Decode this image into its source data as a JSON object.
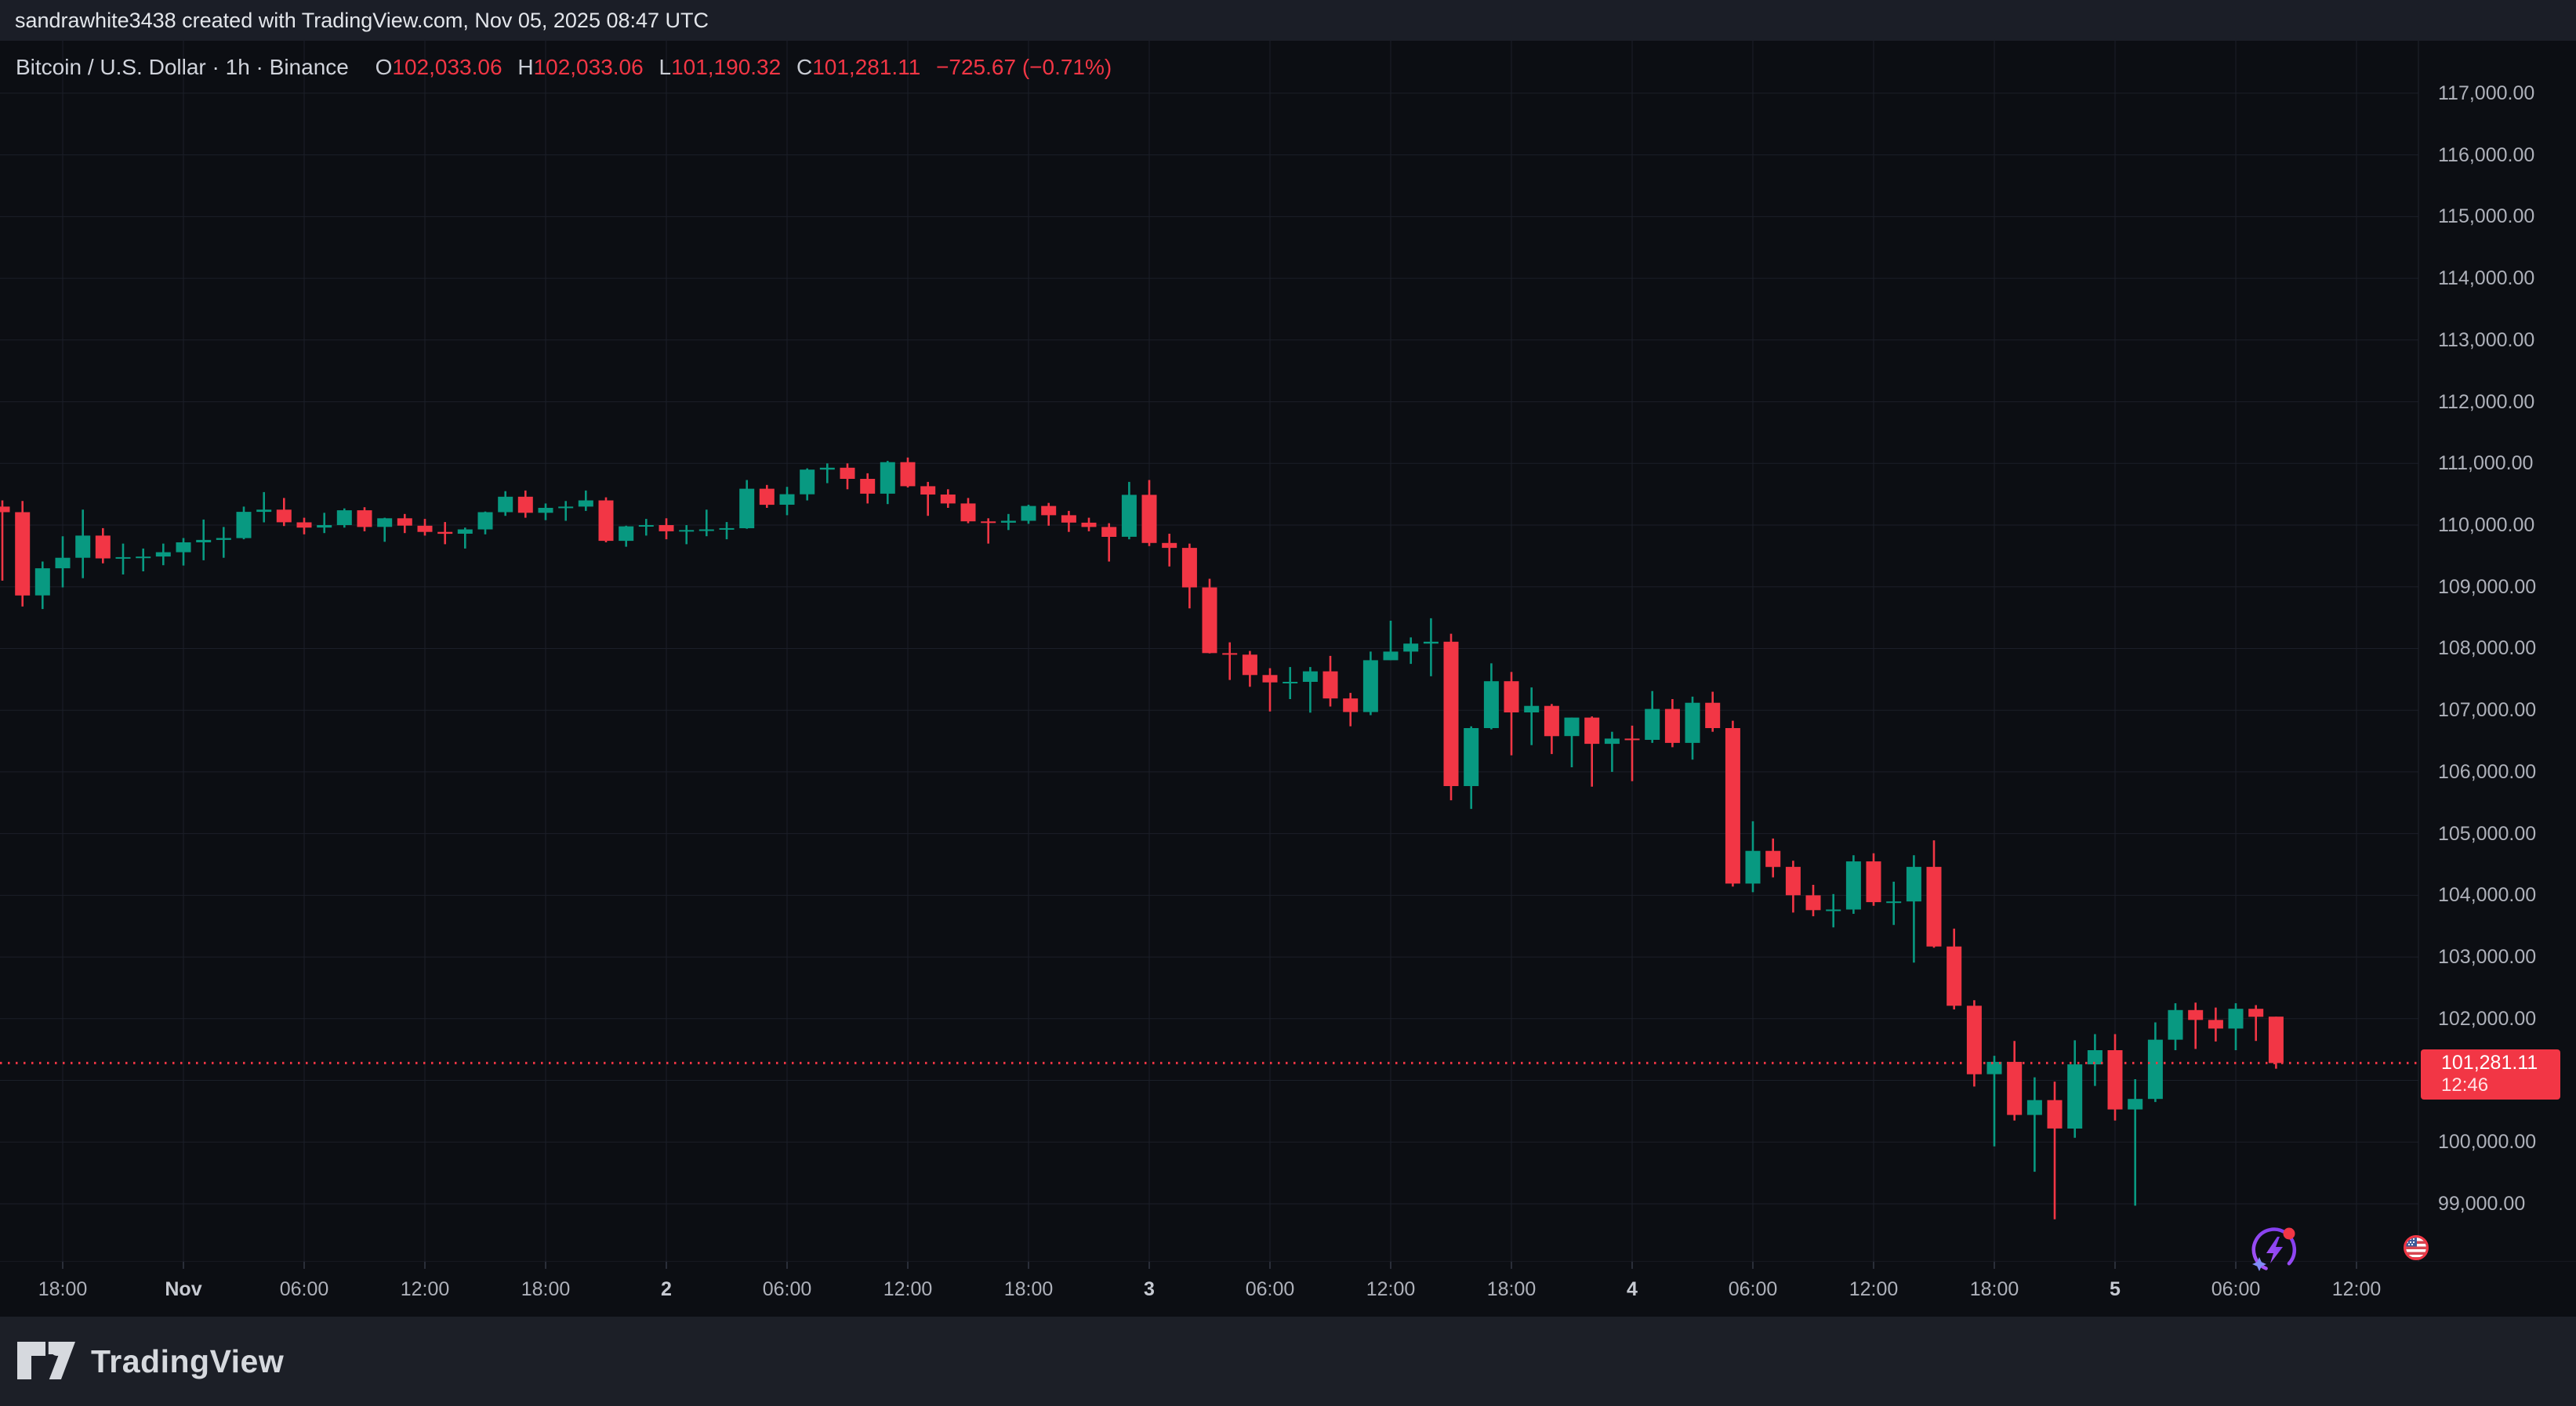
{
  "top_bar": {
    "attribution": "sandrawhite3438 created with TradingView.com, Nov 05, 2025 08:47 UTC"
  },
  "symbol_row": {
    "title": "Bitcoin / U.S. Dollar · 1h · Binance",
    "ohlc": {
      "o_label": "O",
      "o": "102,033.06",
      "h_label": "H",
      "h": "102,033.06",
      "l_label": "L",
      "l": "101,190.32",
      "c_label": "C",
      "c": "101,281.11",
      "change": "−725.67 (−0.71%)"
    }
  },
  "price_label": {
    "price": "101,281.11",
    "countdown": "12:46"
  },
  "price_axis": {
    "labels": [
      {
        "value": 117000,
        "text": "117,000.00"
      },
      {
        "value": 116000,
        "text": "116,000.00"
      },
      {
        "value": 115000,
        "text": "115,000.00"
      },
      {
        "value": 114000,
        "text": "114,000.00"
      },
      {
        "value": 113000,
        "text": "113,000.00"
      },
      {
        "value": 112000,
        "text": "112,000.00"
      },
      {
        "value": 111000,
        "text": "111,000.00"
      },
      {
        "value": 110000,
        "text": "110,000.00"
      },
      {
        "value": 109000,
        "text": "109,000.00"
      },
      {
        "value": 108000,
        "text": "108,000.00"
      },
      {
        "value": 107000,
        "text": "107,000.00"
      },
      {
        "value": 106000,
        "text": "106,000.00"
      },
      {
        "value": 105000,
        "text": "105,000.00"
      },
      {
        "value": 104000,
        "text": "104,000.00"
      },
      {
        "value": 103000,
        "text": "103,000.00"
      },
      {
        "value": 102000,
        "text": "102,000.00"
      },
      {
        "value": 101000,
        "text": "101,000.00"
      },
      {
        "value": 100000,
        "text": "100,000.00"
      },
      {
        "value": 99000,
        "text": "99,000.00"
      }
    ]
  },
  "time_axis": {
    "labels": [
      {
        "text": "18:00",
        "hour_index": 3,
        "day": false
      },
      {
        "text": "Nov",
        "hour_index": 9,
        "day": true
      },
      {
        "text": "06:00",
        "hour_index": 15,
        "day": false
      },
      {
        "text": "12:00",
        "hour_index": 21,
        "day": false
      },
      {
        "text": "18:00",
        "hour_index": 27,
        "day": false
      },
      {
        "text": "2",
        "hour_index": 33,
        "day": true
      },
      {
        "text": "06:00",
        "hour_index": 39,
        "day": false
      },
      {
        "text": "12:00",
        "hour_index": 45,
        "day": false
      },
      {
        "text": "18:00",
        "hour_index": 51,
        "day": false
      },
      {
        "text": "3",
        "hour_index": 57,
        "day": true
      },
      {
        "text": "06:00",
        "hour_index": 63,
        "day": false
      },
      {
        "text": "12:00",
        "hour_index": 69,
        "day": false
      },
      {
        "text": "18:00",
        "hour_index": 75,
        "day": false
      },
      {
        "text": "4",
        "hour_index": 81,
        "day": true
      },
      {
        "text": "06:00",
        "hour_index": 87,
        "day": false
      },
      {
        "text": "12:00",
        "hour_index": 93,
        "day": false
      },
      {
        "text": "18:00",
        "hour_index": 99,
        "day": false
      },
      {
        "text": "5",
        "hour_index": 105,
        "day": true
      },
      {
        "text": "06:00",
        "hour_index": 111,
        "day": false
      },
      {
        "text": "12:00",
        "hour_index": 117,
        "day": false
      }
    ]
  },
  "bottom_bar": {
    "brand": "TradingView"
  },
  "colors": {
    "up": "#089981",
    "down": "#F23645",
    "accent_red": "#F23645",
    "background": "#0C0E13",
    "panel": "#1B1E27",
    "axis_text": "#AEB1BA"
  },
  "icons": {
    "spark_event": "crypto-spark-lightning-icon",
    "flag_event": "us-flag-economic-event-icon"
  },
  "chart_data": {
    "type": "candlestick",
    "title": "Bitcoin / U.S. Dollar",
    "interval": "1h",
    "exchange": "Binance",
    "timezone": "UTC",
    "current_bar": {
      "open": 102033.06,
      "high": 102033.06,
      "low": 101190.32,
      "close": 101281.11,
      "change": -725.67,
      "change_pct": -0.71,
      "countdown": "12:46"
    },
    "last_price": 101281.11,
    "price_range": {
      "min": 98060,
      "max": 117850
    },
    "grid": true,
    "candles": [
      [
        "Oct31 15:00",
        110300,
        110400,
        109100,
        110210
      ],
      [
        "Oct31 16:00",
        110210,
        110390,
        108680,
        108860
      ],
      [
        "Oct31 17:00",
        108860,
        109410,
        108640,
        109300
      ],
      [
        "Oct31 18:00",
        109300,
        109820,
        108990,
        109470
      ],
      [
        "Oct31 19:00",
        109470,
        110250,
        109140,
        109830
      ],
      [
        "Oct31 20:00",
        109830,
        109950,
        109380,
        109460
      ],
      [
        "Oct31 21:00",
        109460,
        109700,
        109200,
        109480
      ],
      [
        "Oct31 22:00",
        109480,
        109620,
        109250,
        109490
      ],
      [
        "Oct31 23:00",
        109490,
        109700,
        109350,
        109560
      ],
      [
        "Nov1 00:00",
        109560,
        109790,
        109345,
        109720
      ],
      [
        "Nov1 01:00",
        109720,
        110090,
        109430,
        109760
      ],
      [
        "Nov1 02:00",
        109760,
        109970,
        109470,
        109790
      ],
      [
        "Nov1 03:00",
        109790,
        110300,
        109770,
        110215
      ],
      [
        "Nov1 04:00",
        110215,
        110535,
        110045,
        110250
      ],
      [
        "Nov1 05:00",
        110250,
        110440,
        109985,
        110045
      ],
      [
        "Nov1 06:00",
        110045,
        110120,
        109850,
        109960
      ],
      [
        "Nov1 07:00",
        109960,
        110200,
        109870,
        110000
      ],
      [
        "Nov1 08:00",
        110000,
        110270,
        109960,
        110240
      ],
      [
        "Nov1 09:00",
        110240,
        110290,
        109900,
        109970
      ],
      [
        "Nov1 10:00",
        109970,
        110120,
        109730,
        110110
      ],
      [
        "Nov1 11:00",
        110110,
        110180,
        109870,
        109990
      ],
      [
        "Nov1 12:00",
        109990,
        110100,
        109830,
        109890
      ],
      [
        "Nov1 13:00",
        109890,
        110050,
        109690,
        109860
      ],
      [
        "Nov1 14:00",
        109860,
        109960,
        109620,
        109930
      ],
      [
        "Nov1 15:00",
        109930,
        110220,
        109850,
        110210
      ],
      [
        "Nov1 16:00",
        110210,
        110550,
        110150,
        110460
      ],
      [
        "Nov1 17:00",
        110460,
        110560,
        110120,
        110200
      ],
      [
        "Nov1 18:00",
        110200,
        110350,
        110080,
        110280
      ],
      [
        "Nov1 19:00",
        110280,
        110390,
        110070,
        110300
      ],
      [
        "Nov1 20:00",
        110300,
        110560,
        110230,
        110400
      ],
      [
        "Nov1 21:00",
        110400,
        110450,
        109720,
        109745
      ],
      [
        "Nov1 22:00",
        109745,
        109990,
        109650,
        109980
      ],
      [
        "Nov1 23:00",
        109980,
        110100,
        109830,
        110000
      ],
      [
        "Nov2 00:00",
        110000,
        110110,
        109770,
        109900
      ],
      [
        "Nov2 01:00",
        109900,
        110000,
        109690,
        109920
      ],
      [
        "Nov2 02:00",
        109920,
        110250,
        109820,
        109930
      ],
      [
        "Nov2 03:00",
        109930,
        110050,
        109770,
        109950
      ],
      [
        "Nov2 04:00",
        109950,
        110730,
        109940,
        110590
      ],
      [
        "Nov2 05:00",
        110590,
        110650,
        110280,
        110330
      ],
      [
        "Nov2 06:00",
        110330,
        110620,
        110160,
        110500
      ],
      [
        "Nov2 07:00",
        110500,
        110920,
        110400,
        110900
      ],
      [
        "Nov2 08:00",
        110900,
        111000,
        110680,
        110930
      ],
      [
        "Nov2 09:00",
        110930,
        111000,
        110580,
        110750
      ],
      [
        "Nov2 10:00",
        110750,
        110840,
        110350,
        110510
      ],
      [
        "Nov2 11:00",
        110510,
        111040,
        110340,
        111020
      ],
      [
        "Nov2 12:00",
        111020,
        111095,
        110610,
        110630
      ],
      [
        "Nov2 13:00",
        110630,
        110700,
        110150,
        110495
      ],
      [
        "Nov2 14:00",
        110495,
        110580,
        110280,
        110350
      ],
      [
        "Nov2 15:00",
        110350,
        110440,
        110030,
        110060
      ],
      [
        "Nov2 16:00",
        110060,
        110110,
        109700,
        110040
      ],
      [
        "Nov2 17:00",
        110040,
        110180,
        109920,
        110070
      ],
      [
        "Nov2 18:00",
        110070,
        110330,
        110020,
        110310
      ],
      [
        "Nov2 19:00",
        110310,
        110360,
        109990,
        110160
      ],
      [
        "Nov2 20:00",
        110160,
        110230,
        109890,
        110040
      ],
      [
        "Nov2 21:00",
        110040,
        110120,
        109900,
        109970
      ],
      [
        "Nov2 22:00",
        109970,
        110030,
        109410,
        109810
      ],
      [
        "Nov2 23:00",
        109810,
        110700,
        109770,
        110490
      ],
      [
        "Nov3 00:00",
        110490,
        110730,
        109660,
        109710
      ],
      [
        "Nov3 01:00",
        109710,
        109860,
        109330,
        109630
      ],
      [
        "Nov3 02:00",
        109630,
        109700,
        108650,
        108990
      ],
      [
        "Nov3 03:00",
        108990,
        109130,
        107920,
        107925
      ],
      [
        "Nov3 04:00",
        107925,
        108100,
        107490,
        107900
      ],
      [
        "Nov3 05:00",
        107900,
        107960,
        107380,
        107570
      ],
      [
        "Nov3 06:00",
        107570,
        107680,
        106980,
        107450
      ],
      [
        "Nov3 07:00",
        107450,
        107700,
        107180,
        107460
      ],
      [
        "Nov3 08:00",
        107460,
        107700,
        106960,
        107630
      ],
      [
        "Nov3 09:00",
        107630,
        107880,
        107060,
        107190
      ],
      [
        "Nov3 10:00",
        107190,
        107280,
        106740,
        106970
      ],
      [
        "Nov3 11:00",
        106970,
        107950,
        106920,
        107810
      ],
      [
        "Nov3 12:00",
        107810,
        108450,
        107810,
        107950
      ],
      [
        "Nov3 13:00",
        107950,
        108180,
        107750,
        108080
      ],
      [
        "Nov3 14:00",
        108080,
        108490,
        107550,
        108110
      ],
      [
        "Nov3 15:00",
        108110,
        108240,
        105540,
        105770
      ],
      [
        "Nov3 16:00",
        105770,
        106740,
        105400,
        106710
      ],
      [
        "Nov3 17:00",
        106710,
        107760,
        106690,
        107470
      ],
      [
        "Nov3 18:00",
        107470,
        107620,
        106270,
        106965
      ],
      [
        "Nov3 19:00",
        106965,
        107370,
        106435,
        107070
      ],
      [
        "Nov3 20:00",
        107070,
        107100,
        106290,
        106580
      ],
      [
        "Nov3 21:00",
        106580,
        106880,
        106075,
        106880
      ],
      [
        "Nov3 22:00",
        106880,
        106900,
        105760,
        106455
      ],
      [
        "Nov3 23:00",
        106455,
        106650,
        106000,
        106540
      ],
      [
        "Nov4 00:00",
        106540,
        106750,
        105850,
        106520
      ],
      [
        "Nov4 01:00",
        106520,
        107310,
        106470,
        107020
      ],
      [
        "Nov4 02:00",
        107020,
        107180,
        106400,
        106470
      ],
      [
        "Nov4 03:00",
        106470,
        107220,
        106200,
        107120
      ],
      [
        "Nov4 04:00",
        107120,
        107300,
        106650,
        106710
      ],
      [
        "Nov4 05:00",
        106710,
        106830,
        104140,
        104190
      ],
      [
        "Nov4 06:00",
        104190,
        105200,
        104050,
        104720
      ],
      [
        "Nov4 07:00",
        104720,
        104920,
        104290,
        104460
      ],
      [
        "Nov4 08:00",
        104460,
        104560,
        103720,
        104000
      ],
      [
        "Nov4 09:00",
        104000,
        104170,
        103660,
        103760
      ],
      [
        "Nov4 10:00",
        103760,
        104020,
        103480,
        103770
      ],
      [
        "Nov4 11:00",
        103770,
        104650,
        103700,
        104550
      ],
      [
        "Nov4 12:00",
        104550,
        104680,
        103830,
        103890
      ],
      [
        "Nov4 13:00",
        103890,
        104220,
        103520,
        103900
      ],
      [
        "Nov4 14:00",
        103900,
        104650,
        102910,
        104460
      ],
      [
        "Nov4 15:00",
        104460,
        104890,
        103150,
        103170
      ],
      [
        "Nov4 16:00",
        103170,
        103460,
        102150,
        102210
      ],
      [
        "Nov4 17:00",
        102210,
        102300,
        100900,
        101100
      ],
      [
        "Nov4 18:00",
        101100,
        101400,
        99930,
        101300
      ],
      [
        "Nov4 19:00",
        101300,
        101640,
        100350,
        100440
      ],
      [
        "Nov4 20:00",
        100440,
        101050,
        99520,
        100680
      ],
      [
        "Nov4 21:00",
        100680,
        100980,
        98750,
        100220
      ],
      [
        "Nov4 22:00",
        100220,
        101650,
        100070,
        101260
      ],
      [
        "Nov4 23:00",
        101260,
        101750,
        100910,
        101490
      ],
      [
        "Nov5 00:00",
        101490,
        101750,
        100350,
        100530
      ],
      [
        "Nov5 01:00",
        100530,
        101020,
        98970,
        100700
      ],
      [
        "Nov5 02:00",
        100700,
        101940,
        100650,
        101660
      ],
      [
        "Nov5 03:00",
        101660,
        102250,
        101490,
        102140
      ],
      [
        "Nov5 04:00",
        102140,
        102260,
        101510,
        101980
      ],
      [
        "Nov5 05:00",
        101980,
        102180,
        101630,
        101840
      ],
      [
        "Nov5 06:00",
        101840,
        102250,
        101490,
        102160
      ],
      [
        "Nov5 07:00",
        102160,
        102220,
        101640,
        102030
      ],
      [
        "Nov5 08:00",
        102033,
        102033,
        101190,
        101281
      ]
    ]
  }
}
